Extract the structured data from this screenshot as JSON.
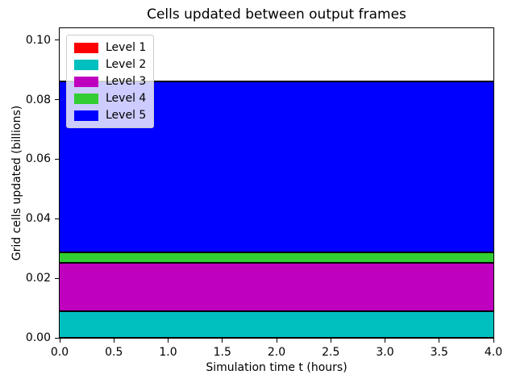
{
  "chart_data": {
    "type": "area",
    "stacked": true,
    "title": "Cells updated between output frames",
    "xlabel": "Simulation time t (hours)",
    "ylabel": "Grid cells updated (billions)",
    "xlim": [
      0.0,
      4.0
    ],
    "ylim": [
      0.0,
      0.104
    ],
    "grid": false,
    "series_constant_over_x": true,
    "series": [
      {
        "name": "Level 1",
        "color": "#ff0000",
        "value": 0.0002
      },
      {
        "name": "Level 2",
        "color": "#00bfbf",
        "value": 0.009
      },
      {
        "name": "Level 3",
        "color": "#bf00bf",
        "value": 0.0163
      },
      {
        "name": "Level 4",
        "color": "#32cd32",
        "value": 0.0034
      },
      {
        "name": "Level 5",
        "color": "#0000ff",
        "value": 0.0575
      }
    ],
    "cumulative_boundaries": [
      0.0002,
      0.0092,
      0.0255,
      0.0289,
      0.0864
    ],
    "stack_total": 0.0864,
    "xticks": {
      "values": [
        0.0,
        0.5,
        1.0,
        1.5,
        2.0,
        2.5,
        3.0,
        3.5,
        4.0
      ],
      "labels": [
        "0.0",
        "0.5",
        "1.0",
        "1.5",
        "2.0",
        "2.5",
        "3.0",
        "3.5",
        "4.0"
      ]
    },
    "yticks": {
      "values": [
        0.0,
        0.02,
        0.04,
        0.06,
        0.08,
        0.1
      ],
      "labels": [
        "0.00",
        "0.02",
        "0.04",
        "0.06",
        "0.08",
        "0.10"
      ]
    },
    "legend": {
      "position": "upper left",
      "entries": [
        "Level 1",
        "Level 2",
        "Level 3",
        "Level 4",
        "Level 5"
      ]
    },
    "styles": {
      "edge_color": "#000000",
      "axes_background": "#ffffff",
      "frame_color": "#000000",
      "legend_background": "rgba(255,255,255,0.8)",
      "legend_border": "#cccccc",
      "text_color": "#000000"
    }
  }
}
